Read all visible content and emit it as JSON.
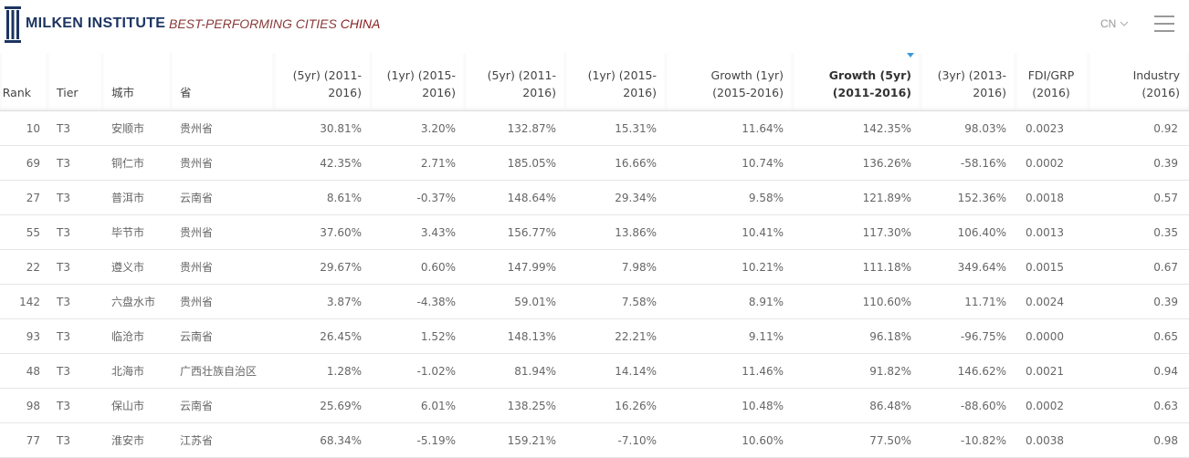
{
  "header": {
    "logo": "MILKEN INSTITUTE",
    "nav_title": "BEST-PERFORMING CITIES",
    "nav_title_accent": "CHINA",
    "language": "CN"
  },
  "table": {
    "columns": [
      [
        "Rank"
      ],
      [
        "Tier"
      ],
      [
        "城市"
      ],
      [
        "省"
      ],
      [
        "(5yr) (2011-",
        "2016)"
      ],
      [
        "(1yr) (2015-",
        "2016)"
      ],
      [
        "(5yr) (2011-",
        "2016)"
      ],
      [
        "(1yr) (2015-",
        "2016)"
      ],
      [
        "Growth (1yr)",
        "(2015-2016)"
      ],
      [
        "Growth (5yr)",
        "(2011-2016)"
      ],
      [
        "(3yr) (2013-",
        "2016)"
      ],
      [
        "FDI/GRP",
        "(2016)"
      ],
      [
        "Industry",
        "(2016)"
      ]
    ],
    "rows": [
      [
        "10",
        "T3",
        "安顺市",
        "贵州省",
        "30.81%",
        "3.20%",
        "132.87%",
        "15.31%",
        "11.64%",
        "142.35%",
        "98.03%",
        "0.0023",
        "0.92"
      ],
      [
        "69",
        "T3",
        "铜仁市",
        "贵州省",
        "42.35%",
        "2.71%",
        "185.05%",
        "16.66%",
        "10.74%",
        "136.26%",
        "-58.16%",
        "0.0002",
        "0.39"
      ],
      [
        "27",
        "T3",
        "普洱市",
        "云南省",
        "8.61%",
        "-0.37%",
        "148.64%",
        "29.34%",
        "9.58%",
        "121.89%",
        "152.36%",
        "0.0018",
        "0.57"
      ],
      [
        "55",
        "T3",
        "毕节市",
        "贵州省",
        "37.60%",
        "3.43%",
        "156.77%",
        "13.86%",
        "10.41%",
        "117.30%",
        "106.40%",
        "0.0013",
        "0.35"
      ],
      [
        "22",
        "T3",
        "遵义市",
        "贵州省",
        "29.67%",
        "0.60%",
        "147.99%",
        "7.98%",
        "10.21%",
        "111.18%",
        "349.64%",
        "0.0015",
        "0.67"
      ],
      [
        "142",
        "T3",
        "六盘水市",
        "贵州省",
        "3.87%",
        "-4.38%",
        "59.01%",
        "7.58%",
        "8.91%",
        "110.60%",
        "11.71%",
        "0.0024",
        "0.39"
      ],
      [
        "93",
        "T3",
        "临沧市",
        "云南省",
        "26.45%",
        "1.52%",
        "148.13%",
        "22.21%",
        "9.11%",
        "96.18%",
        "-96.75%",
        "0.0000",
        "0.65"
      ],
      [
        "48",
        "T3",
        "北海市",
        "广西壮族自治区",
        "1.28%",
        "-1.02%",
        "81.94%",
        "14.14%",
        "11.46%",
        "91.82%",
        "146.62%",
        "0.0021",
        "0.94"
      ],
      [
        "98",
        "T3",
        "保山市",
        "云南省",
        "25.69%",
        "6.01%",
        "138.25%",
        "16.26%",
        "10.48%",
        "86.48%",
        "-88.60%",
        "0.0002",
        "0.63"
      ],
      [
        "77",
        "T3",
        "淮安市",
        "江苏省",
        "68.34%",
        "-5.19%",
        "159.21%",
        "-7.10%",
        "10.60%",
        "77.50%",
        "-10.82%",
        "0.0038",
        "0.98"
      ]
    ]
  }
}
